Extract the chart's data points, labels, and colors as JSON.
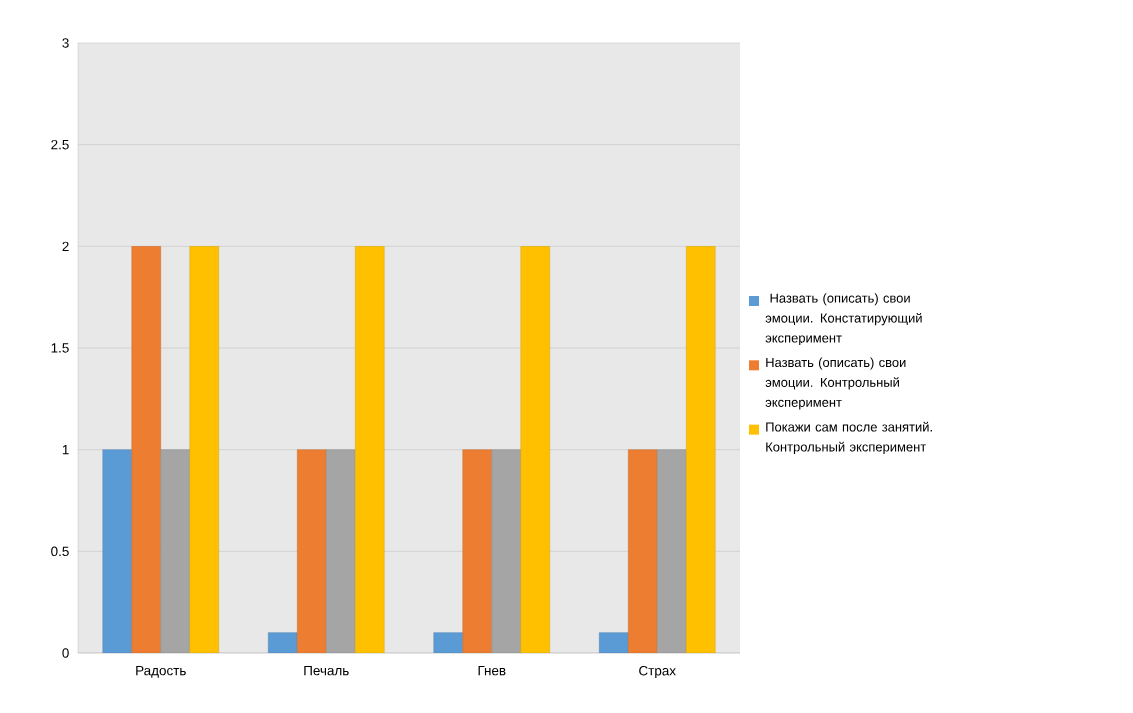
{
  "chart_data": {
    "type": "bar",
    "categories": [
      "Радость",
      "Печаль",
      "Гнев",
      "Страх"
    ],
    "series": [
      {
        "name": " Назвать (описать) свои эмоции. Констатирующий эксперимент",
        "color": "#5b9bd5",
        "values": [
          1,
          0.1,
          0.1,
          0.1
        ]
      },
      {
        "name": "Назвать (описать) свои эмоции. Контрольный эксперимент",
        "color": "#ed7d31",
        "values": [
          2,
          1,
          1,
          1
        ]
      },
      {
        "color": "#a5a5a5",
        "values": [
          1,
          1,
          1,
          1
        ]
      },
      {
        "name": "Покажи сам после занятий. Контрольный эксперимент",
        "color": "#ffc000",
        "values": [
          2,
          2,
          2,
          2
        ]
      }
    ],
    "ylim": [
      0,
      3
    ],
    "yticks": [
      0,
      0.5,
      1,
      1.5,
      2,
      2.5,
      3
    ],
    "grid": "y",
    "legend": "right"
  }
}
